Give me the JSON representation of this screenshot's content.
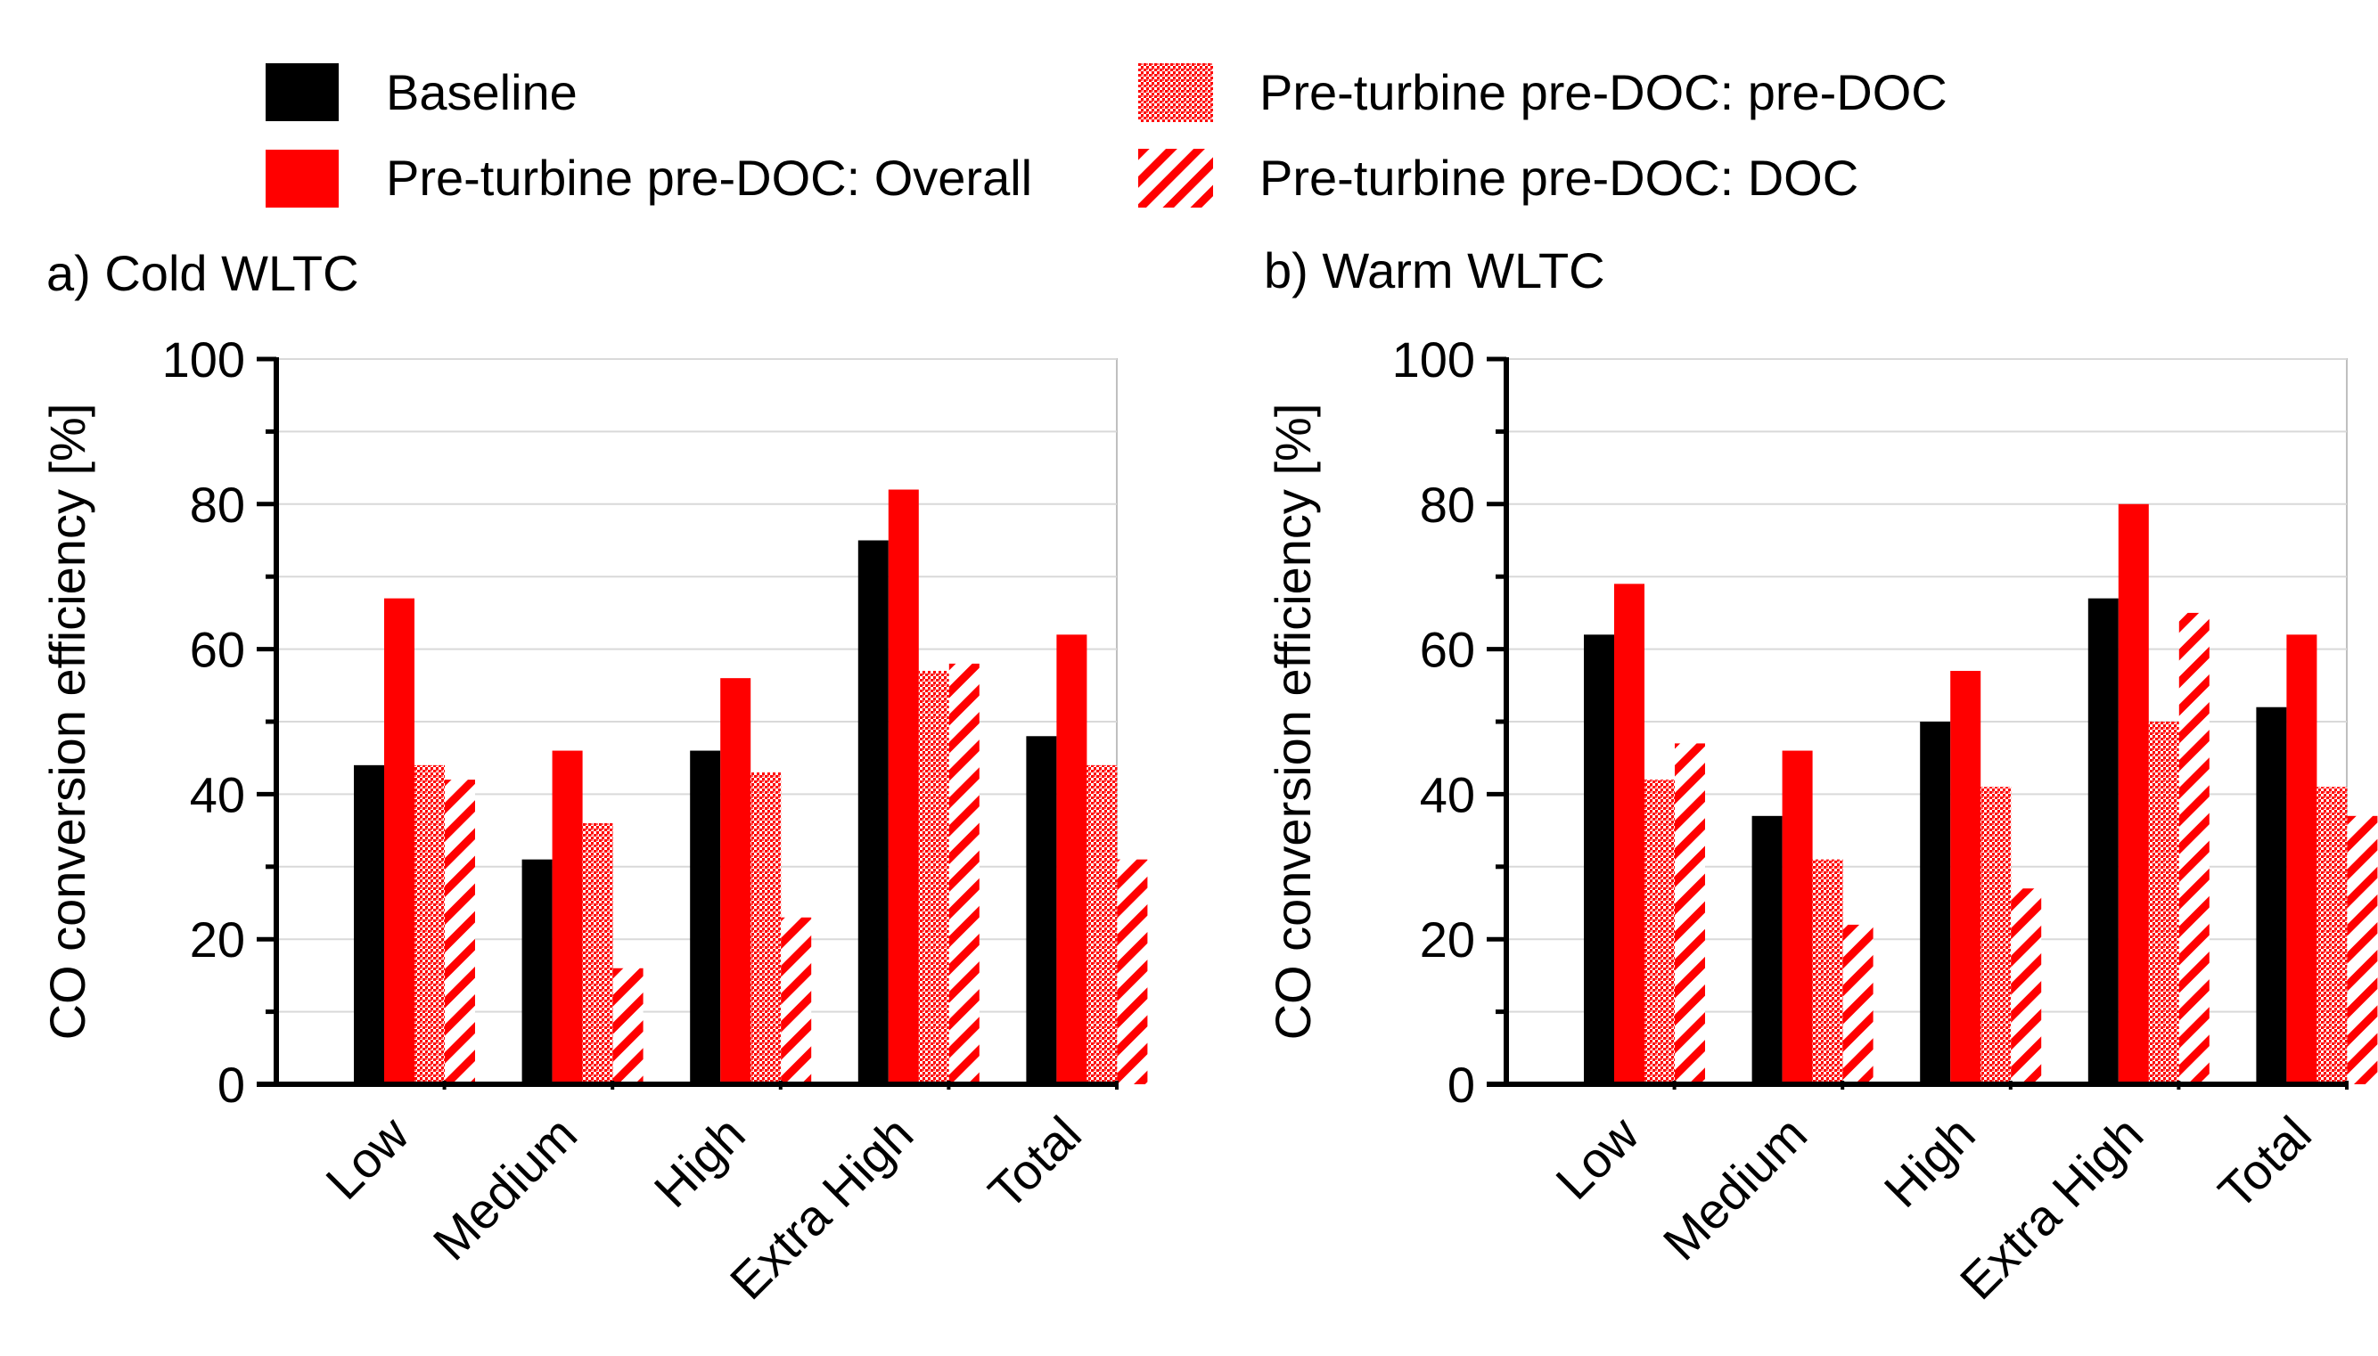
{
  "legend": {
    "baseline": "Baseline",
    "overall": "Pre-turbine pre-DOC: Overall",
    "pre_doc": "Pre-turbine pre-DOC: pre-DOC",
    "doc": "Pre-turbine pre-DOC: DOC"
  },
  "colors": {
    "baseline": "#000000",
    "accent": "#ff0000",
    "grid": "#d9d9d9"
  },
  "chart_data": [
    {
      "type": "bar",
      "title": "a) Cold WLTC",
      "ylabel": "CO conversion efficiency [%]",
      "xlabel": "",
      "ylim": [
        0,
        100
      ],
      "yticks": [
        0,
        20,
        40,
        60,
        80,
        100
      ],
      "grid": true,
      "categories": [
        "Low",
        "Medium",
        "High",
        "Extra High",
        "Total"
      ],
      "series": [
        {
          "name": "Baseline",
          "pattern": "solid-black",
          "values": [
            44,
            31,
            46,
            75,
            48
          ]
        },
        {
          "name": "Pre-turbine pre-DOC: Overall",
          "pattern": "solid-red",
          "values": [
            67,
            46,
            56,
            82,
            62
          ]
        },
        {
          "name": "Pre-turbine pre-DOC: pre-DOC",
          "pattern": "dotted-red",
          "values": [
            44,
            36,
            43,
            57,
            44
          ]
        },
        {
          "name": "Pre-turbine pre-DOC: DOC",
          "pattern": "hatched-red",
          "values": [
            42,
            16,
            23,
            58,
            31
          ]
        }
      ]
    },
    {
      "type": "bar",
      "title": "b) Warm WLTC",
      "ylabel": "CO conversion efficiency [%]",
      "xlabel": "",
      "ylim": [
        0,
        100
      ],
      "yticks": [
        0,
        20,
        40,
        60,
        80,
        100
      ],
      "grid": true,
      "categories": [
        "Low",
        "Medium",
        "High",
        "Extra High",
        "Total"
      ],
      "series": [
        {
          "name": "Baseline",
          "pattern": "solid-black",
          "values": [
            62,
            37,
            50,
            67,
            52
          ]
        },
        {
          "name": "Pre-turbine pre-DOC: Overall",
          "pattern": "solid-red",
          "values": [
            69,
            46,
            57,
            80,
            62
          ]
        },
        {
          "name": "Pre-turbine pre-DOC: pre-DOC",
          "pattern": "dotted-red",
          "values": [
            42,
            31,
            41,
            50,
            41
          ]
        },
        {
          "name": "Pre-turbine pre-DOC: DOC",
          "pattern": "hatched-red",
          "values": [
            47,
            22,
            27,
            65,
            37
          ]
        }
      ]
    }
  ]
}
